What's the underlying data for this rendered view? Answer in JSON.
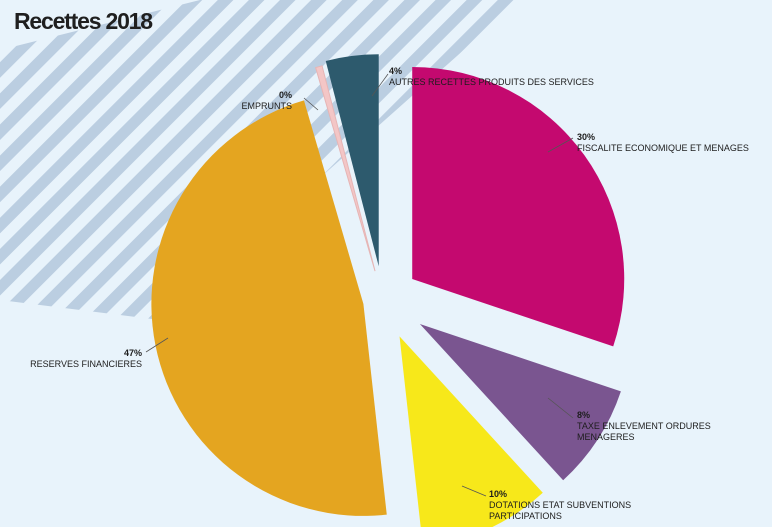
{
  "chart_data": {
    "type": "pie",
    "title": "Recettes 2018",
    "slices": [
      {
        "name": "FISCALITE ECONOMIQUE ET MENAGES",
        "value": 30,
        "label": "30%",
        "color": "#c4096f"
      },
      {
        "name": "TAXE ENLEVEMENT ORDURES MENAGERES",
        "value": 8,
        "label": "8%",
        "color": "#7a5590"
      },
      {
        "name": "DOTATIONS ETAT  SUBVENTIONS PARTICIPATIONS",
        "value": 10,
        "label": "10%",
        "color": "#f7e81a"
      },
      {
        "name": "RESERVES FINANCIERES",
        "value": 47,
        "label": "47%",
        "color": "#e4a520"
      },
      {
        "name": "EMPRUNTS",
        "value": 0.5,
        "label": "0%",
        "color": "#f3c6c6"
      },
      {
        "name": "AUTRES RECETTES PRODUITS DES SERVICES",
        "value": 4,
        "label": "4%",
        "color": "#2d5a6d"
      }
    ],
    "legend": "none",
    "labels": "outside"
  },
  "colors": {
    "background": "#e8f3fb",
    "stripes": "#b3c7dc"
  }
}
